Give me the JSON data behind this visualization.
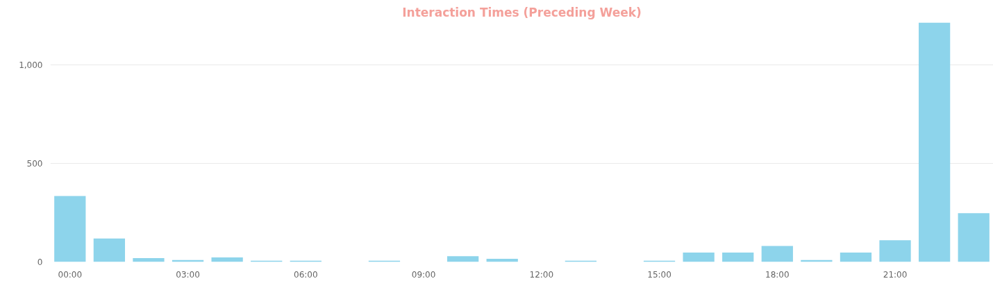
{
  "chart_data": {
    "type": "bar",
    "title": "Interaction Times (Preceding Week)",
    "x": [
      0,
      1,
      2,
      3,
      4,
      5,
      6,
      7,
      8,
      9,
      10,
      11,
      12,
      13,
      14,
      15,
      16,
      17,
      18,
      19,
      20,
      21,
      22,
      23
    ],
    "values": [
      335,
      119,
      19,
      10,
      23,
      6,
      6,
      0,
      6,
      0,
      29,
      16,
      0,
      6,
      0,
      6,
      48,
      48,
      81,
      10,
      48,
      110,
      1216,
      248
    ],
    "color": "#8dd4eb",
    "xlim": [
      -0.5,
      23.5
    ],
    "xticks": [
      {
        "value": 0,
        "label": "00:00"
      },
      {
        "value": 3,
        "label": "03:00"
      },
      {
        "value": 6,
        "label": "06:00"
      },
      {
        "value": 9,
        "label": "09:00"
      },
      {
        "value": 12,
        "label": "12:00"
      },
      {
        "value": 15,
        "label": "15:00"
      },
      {
        "value": 18,
        "label": "18:00"
      },
      {
        "value": 21,
        "label": "21:00"
      }
    ],
    "ylim": [
      0,
      1216
    ],
    "yticks": [
      0,
      {
        "value": 500,
        "label": "500"
      },
      {
        "value": 1000,
        "label": "1,000"
      }
    ],
    "grid": "y"
  }
}
